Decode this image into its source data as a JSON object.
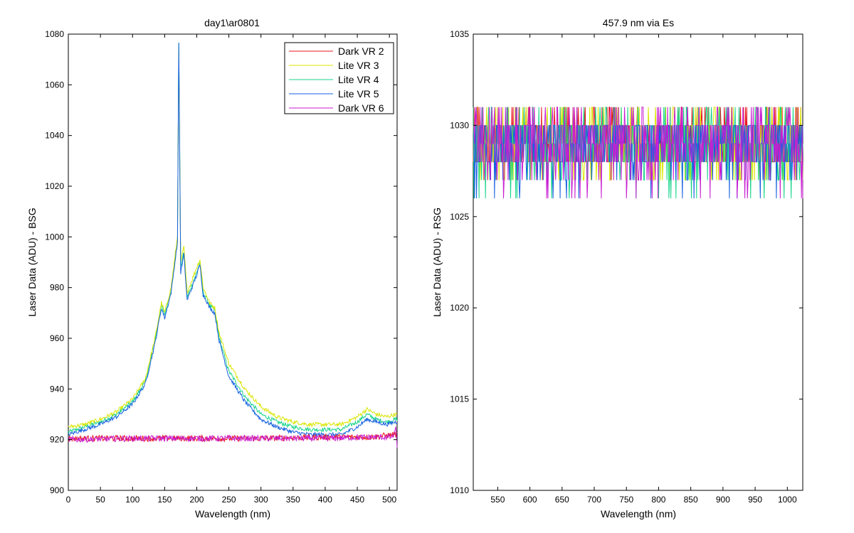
{
  "chart_data": [
    {
      "type": "line",
      "title": "day1\\ar0801",
      "xlabel": "Wavelength (nm)",
      "ylabel": "Laser Data (ADU) - BSG",
      "xlim": [
        0,
        512
      ],
      "ylim": [
        900,
        1080
      ],
      "xticks": [
        0,
        50,
        100,
        150,
        200,
        250,
        300,
        350,
        400,
        450,
        500
      ],
      "yticks": [
        900,
        920,
        940,
        960,
        980,
        1000,
        1020,
        1040,
        1060,
        1080
      ],
      "grid": false,
      "legend_position": "top-right",
      "series": [
        {
          "name": "Dark VR 2",
          "color": "#e8141e",
          "x": [
            0,
            100,
            200,
            300,
            400,
            470,
            510
          ],
          "y": [
            920.5,
            920.5,
            920.5,
            920.5,
            921,
            921,
            922
          ]
        },
        {
          "name": "Lite VR 3",
          "color": "#d9e600",
          "x": [
            0,
            25,
            50,
            75,
            100,
            120,
            135,
            145,
            150,
            160,
            170,
            172,
            175,
            180,
            185,
            200,
            205,
            210,
            215,
            220,
            228,
            235,
            250,
            275,
            300,
            325,
            350,
            375,
            400,
            425,
            450,
            465,
            480,
            495,
            510
          ],
          "y": [
            925,
            926,
            928,
            931,
            936,
            944,
            960,
            974,
            970,
            980,
            1000,
            1075,
            990,
            996,
            978,
            988,
            991,
            980,
            977,
            974,
            972,
            962,
            950,
            940,
            933,
            929,
            927,
            926,
            926,
            926,
            929,
            932,
            930,
            929,
            930
          ]
        },
        {
          "name": "Lite VR 4",
          "color": "#17d48a",
          "x": [
            0,
            25,
            50,
            75,
            100,
            120,
            135,
            145,
            150,
            160,
            170,
            172,
            175,
            180,
            185,
            200,
            205,
            210,
            215,
            220,
            228,
            235,
            250,
            275,
            300,
            325,
            350,
            375,
            400,
            425,
            450,
            465,
            480,
            495,
            510
          ],
          "y": [
            923,
            925,
            927,
            930,
            935,
            943,
            959,
            973,
            969,
            979,
            999,
            1077,
            988,
            994,
            976,
            986,
            990,
            978,
            976,
            973,
            971,
            960,
            947,
            937,
            930,
            927,
            925,
            924,
            924,
            924,
            927,
            930,
            928,
            927,
            928
          ]
        },
        {
          "name": "Lite VR 5",
          "color": "#1560e0",
          "x": [
            0,
            25,
            50,
            75,
            100,
            120,
            135,
            145,
            150,
            160,
            170,
            172,
            175,
            180,
            185,
            200,
            205,
            210,
            215,
            220,
            228,
            235,
            250,
            275,
            300,
            325,
            350,
            375,
            400,
            425,
            450,
            465,
            480,
            495,
            510
          ],
          "y": [
            922,
            924,
            926,
            929,
            934,
            942,
            958,
            972,
            968,
            978,
            998,
            1077,
            986,
            993,
            975,
            985,
            989,
            977,
            975,
            972,
            970,
            959,
            945,
            935,
            928,
            925,
            923,
            922,
            922,
            922,
            925,
            928,
            927,
            926,
            927
          ]
        },
        {
          "name": "Dark VR 6",
          "color": "#c81ed2",
          "x": [
            0,
            100,
            200,
            300,
            400,
            470,
            505,
            510,
            512
          ],
          "y": [
            920,
            920.5,
            920.5,
            920.5,
            920.5,
            921,
            921,
            924,
            918
          ]
        }
      ]
    },
    {
      "type": "line",
      "title": "457.9 nm via Es",
      "xlabel": "Wavelength (nm)",
      "ylabel": "Laser Data (ADU) - RSG",
      "xlim": [
        512,
        1024
      ],
      "ylim": [
        1010,
        1035
      ],
      "xticks": [
        550,
        600,
        650,
        700,
        750,
        800,
        850,
        900,
        950,
        1000
      ],
      "yticks": [
        1010,
        1015,
        1020,
        1025,
        1030,
        1035
      ],
      "grid": false,
      "series": [
        {
          "name": "Dark VR 2",
          "color": "#e8141e",
          "x": [
            512,
            1024
          ],
          "y": [
            1029.5,
            1029.5
          ],
          "range": [
            1028,
            1031
          ]
        },
        {
          "name": "Lite VR 3",
          "color": "#d9e600",
          "x": [
            512,
            1024
          ],
          "y": [
            1029,
            1029
          ],
          "range": [
            1027,
            1031
          ]
        },
        {
          "name": "Lite VR 4",
          "color": "#17d48a",
          "x": [
            512,
            1024
          ],
          "y": [
            1029,
            1029
          ],
          "range": [
            1026,
            1031
          ]
        },
        {
          "name": "Lite VR 5",
          "color": "#1560e0",
          "x": [
            512,
            1024
          ],
          "y": [
            1029,
            1029
          ],
          "range": [
            1026,
            1030
          ]
        },
        {
          "name": "Dark VR 6",
          "color": "#c81ed2",
          "x": [
            512,
            1024
          ],
          "y": [
            1029.5,
            1029.5
          ],
          "range": [
            1026,
            1032
          ]
        }
      ]
    }
  ]
}
